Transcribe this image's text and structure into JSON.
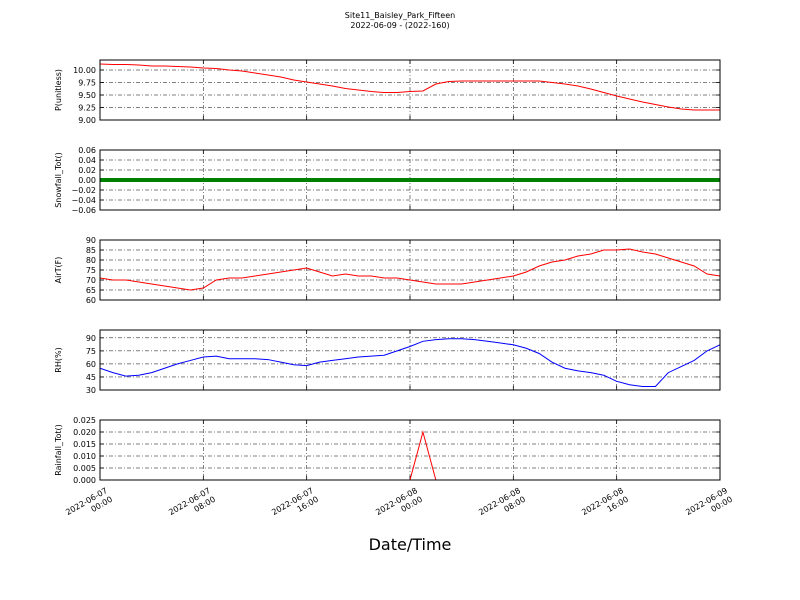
{
  "title": "Site11_Baisley_Park_Fifteen",
  "subtitle": "2022-06-09 - (2022-160)",
  "x_axis": {
    "label": "Date/Time",
    "x": [
      "2022-06-07 00:00",
      "2022-06-07 01:00",
      "2022-06-07 02:00",
      "2022-06-07 03:00",
      "2022-06-07 04:00",
      "2022-06-07 05:00",
      "2022-06-07 06:00",
      "2022-06-07 07:00",
      "2022-06-07 08:00",
      "2022-06-07 09:00",
      "2022-06-07 10:00",
      "2022-06-07 11:00",
      "2022-06-07 12:00",
      "2022-06-07 13:00",
      "2022-06-07 14:00",
      "2022-06-07 15:00",
      "2022-06-07 16:00",
      "2022-06-07 17:00",
      "2022-06-07 18:00",
      "2022-06-07 19:00",
      "2022-06-07 20:00",
      "2022-06-07 21:00",
      "2022-06-07 22:00",
      "2022-06-07 23:00",
      "2022-06-08 00:00",
      "2022-06-08 01:00",
      "2022-06-08 02:00",
      "2022-06-08 03:00",
      "2022-06-08 04:00",
      "2022-06-08 05:00",
      "2022-06-08 06:00",
      "2022-06-08 07:00",
      "2022-06-08 08:00",
      "2022-06-08 09:00",
      "2022-06-08 10:00",
      "2022-06-08 11:00",
      "2022-06-08 12:00",
      "2022-06-08 13:00",
      "2022-06-08 14:00",
      "2022-06-08 15:00",
      "2022-06-08 16:00",
      "2022-06-08 17:00",
      "2022-06-08 18:00",
      "2022-06-08 19:00",
      "2022-06-08 20:00",
      "2022-06-08 21:00",
      "2022-06-08 22:00",
      "2022-06-08 23:00",
      "2022-06-09 00:00"
    ],
    "xlim": [
      "2022-06-07 00:00",
      "2022-06-09 00:00"
    ],
    "xticks": [
      {
        "value": "2022-06-07 00:00",
        "label": "2022-06-07\n00:00"
      },
      {
        "value": "2022-06-07 08:00",
        "label": "2022-06-07\n08:00"
      },
      {
        "value": "2022-06-07 16:00",
        "label": "2022-06-07\n16:00"
      },
      {
        "value": "2022-06-08 00:00",
        "label": "2022-06-08\n00:00"
      },
      {
        "value": "2022-06-08 08:00",
        "label": "2022-06-08\n08:00"
      },
      {
        "value": "2022-06-08 16:00",
        "label": "2022-06-08\n16:00"
      },
      {
        "value": "2022-06-09 00:00",
        "label": "2022-06-09\n00:00"
      }
    ]
  },
  "chart_data": [
    {
      "type": "line",
      "ylabel": "P(unitless)",
      "ylim": [
        9.0,
        10.2
      ],
      "grid": true,
      "yticks": [
        {
          "value": 9,
          "label": "9.00"
        },
        {
          "value": 9.25,
          "label": "9.25"
        },
        {
          "value": 9.5,
          "label": "9.50"
        },
        {
          "value": 9.75,
          "label": "9.75"
        },
        {
          "value": 10,
          "label": "10.00"
        }
      ],
      "series": [
        {
          "color": "#ff0000",
          "values": [
            10.12,
            10.11,
            10.11,
            10.1,
            10.08,
            10.08,
            10.07,
            10.06,
            10.04,
            10.03,
            10.0,
            9.98,
            9.94,
            9.9,
            9.86,
            9.8,
            9.76,
            9.72,
            9.68,
            9.63,
            9.6,
            9.57,
            9.55,
            9.55,
            9.57,
            9.58,
            9.72,
            9.77,
            9.78,
            9.78,
            9.78,
            9.78,
            9.78,
            9.78,
            9.78,
            9.75,
            9.72,
            9.68,
            9.62,
            9.55,
            9.48,
            9.42,
            9.36,
            9.31,
            9.26,
            9.22,
            9.2,
            9.2,
            9.2
          ]
        }
      ]
    },
    {
      "type": "line",
      "ylabel": "Snowfall_Tot()",
      "ylim": [
        -0.06,
        0.06
      ],
      "grid": true,
      "yticks": [
        {
          "value": -0.06,
          "label": "−0.06"
        },
        {
          "value": -0.04,
          "label": "−0.04"
        },
        {
          "value": -0.02,
          "label": "−0.02"
        },
        {
          "value": 0,
          "label": "0.00"
        },
        {
          "value": 0.02,
          "label": "0.02"
        },
        {
          "value": 0.04,
          "label": "0.04"
        },
        {
          "value": 0.06,
          "label": "0.06"
        }
      ],
      "series": [
        {
          "color": "#008000",
          "values": [
            0,
            0,
            0,
            0,
            0,
            0,
            0,
            0,
            0,
            0,
            0,
            0,
            0,
            0,
            0,
            0,
            0,
            0,
            0,
            0,
            0,
            0,
            0,
            0,
            0,
            0,
            0,
            0,
            0,
            0,
            0,
            0,
            0,
            0,
            0,
            0,
            0,
            0,
            0,
            0,
            0,
            0,
            0,
            0,
            0,
            0,
            0,
            0,
            0
          ]
        }
      ]
    },
    {
      "type": "line",
      "ylabel": "AirT(F)",
      "ylim": [
        60,
        90
      ],
      "grid": true,
      "yticks": [
        60,
        65,
        70,
        75,
        80,
        85,
        90
      ],
      "series": [
        {
          "color": "#ff0000",
          "values": [
            71,
            70,
            70,
            69,
            68,
            67,
            66,
            65,
            66,
            70,
            71,
            71,
            72,
            73,
            74,
            75,
            76,
            74,
            72,
            73,
            72,
            72,
            71,
            71,
            70,
            69,
            68,
            68,
            68,
            69,
            70,
            71,
            72,
            74,
            77,
            79,
            80,
            82,
            83,
            85,
            85,
            85.5,
            84,
            83,
            81,
            79,
            77,
            73,
            72
          ]
        }
      ]
    },
    {
      "type": "line",
      "ylabel": "RH(%)",
      "ylim": [
        30,
        99
      ],
      "grid": true,
      "yticks": [
        30,
        45,
        60,
        75,
        90
      ],
      "series": [
        {
          "color": "#0000ff",
          "values": [
            55,
            50,
            46,
            47,
            50,
            55,
            60,
            64,
            68,
            69,
            66,
            66,
            66,
            65,
            62,
            59,
            58,
            62,
            64,
            66,
            68,
            69,
            70,
            75,
            80,
            86,
            88,
            89,
            89,
            88,
            86,
            84,
            82,
            78,
            72,
            62,
            55,
            52,
            50,
            47,
            40,
            36,
            34,
            34,
            50,
            57,
            64,
            75,
            82
          ]
        }
      ]
    },
    {
      "type": "line",
      "ylabel": "Rainfall_Tot()",
      "ylim": [
        0,
        0.025
      ],
      "grid": true,
      "yticks": [
        {
          "value": 0,
          "label": "0.000"
        },
        {
          "value": 0.005,
          "label": "0.005"
        },
        {
          "value": 0.01,
          "label": "0.010"
        },
        {
          "value": 0.015,
          "label": "0.015"
        },
        {
          "value": 0.02,
          "label": "0.020"
        },
        {
          "value": 0.025,
          "label": "0.025"
        }
      ],
      "series": [
        {
          "color": "#ff0000",
          "values": [
            0,
            0,
            0,
            0,
            0,
            0,
            0,
            0,
            0,
            0,
            0,
            0,
            0,
            0,
            0,
            0,
            0,
            0,
            0,
            0,
            0,
            0,
            0,
            0,
            0,
            0.02,
            0,
            0,
            0,
            0,
            0,
            0,
            0,
            0,
            0,
            0,
            0,
            0,
            0,
            0,
            0,
            0,
            0,
            0,
            0,
            0,
            0,
            0,
            0
          ]
        }
      ]
    }
  ]
}
